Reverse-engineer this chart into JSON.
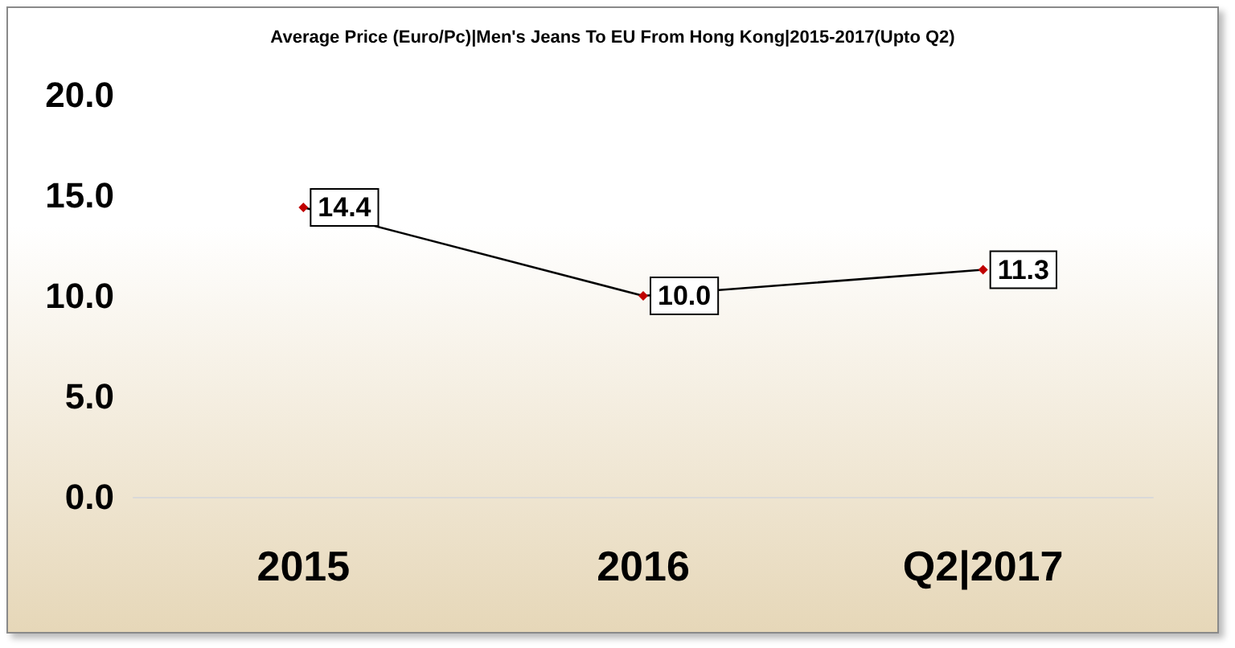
{
  "chart_data": {
    "type": "line",
    "title": "Average Price (Euro/Pc)|Men's Jeans To EU From Hong Kong|2015-2017(Upto Q2)",
    "categories": [
      "2015",
      "2016",
      "Q2|2017"
    ],
    "series": [
      {
        "color": "#000000",
        "colors": [
          "#c00000",
          "#c00000",
          "#c00000"
        ],
        "values": [
          14.4,
          10.0,
          11.3
        ],
        "value_labels": [
          "14.4",
          "10.0",
          "11.3"
        ]
      }
    ],
    "ylim": [
      0,
      20
    ],
    "yticks": [
      {
        "value": 0,
        "label": "0.0"
      },
      {
        "value": 5,
        "label": "5.0"
      },
      {
        "value": 10,
        "label": "10.0"
      },
      {
        "value": 15,
        "label": "15.0"
      },
      {
        "value": 20,
        "label": "20.0"
      }
    ],
    "grid": false,
    "marker": "diamond",
    "line_style": "solid"
  }
}
